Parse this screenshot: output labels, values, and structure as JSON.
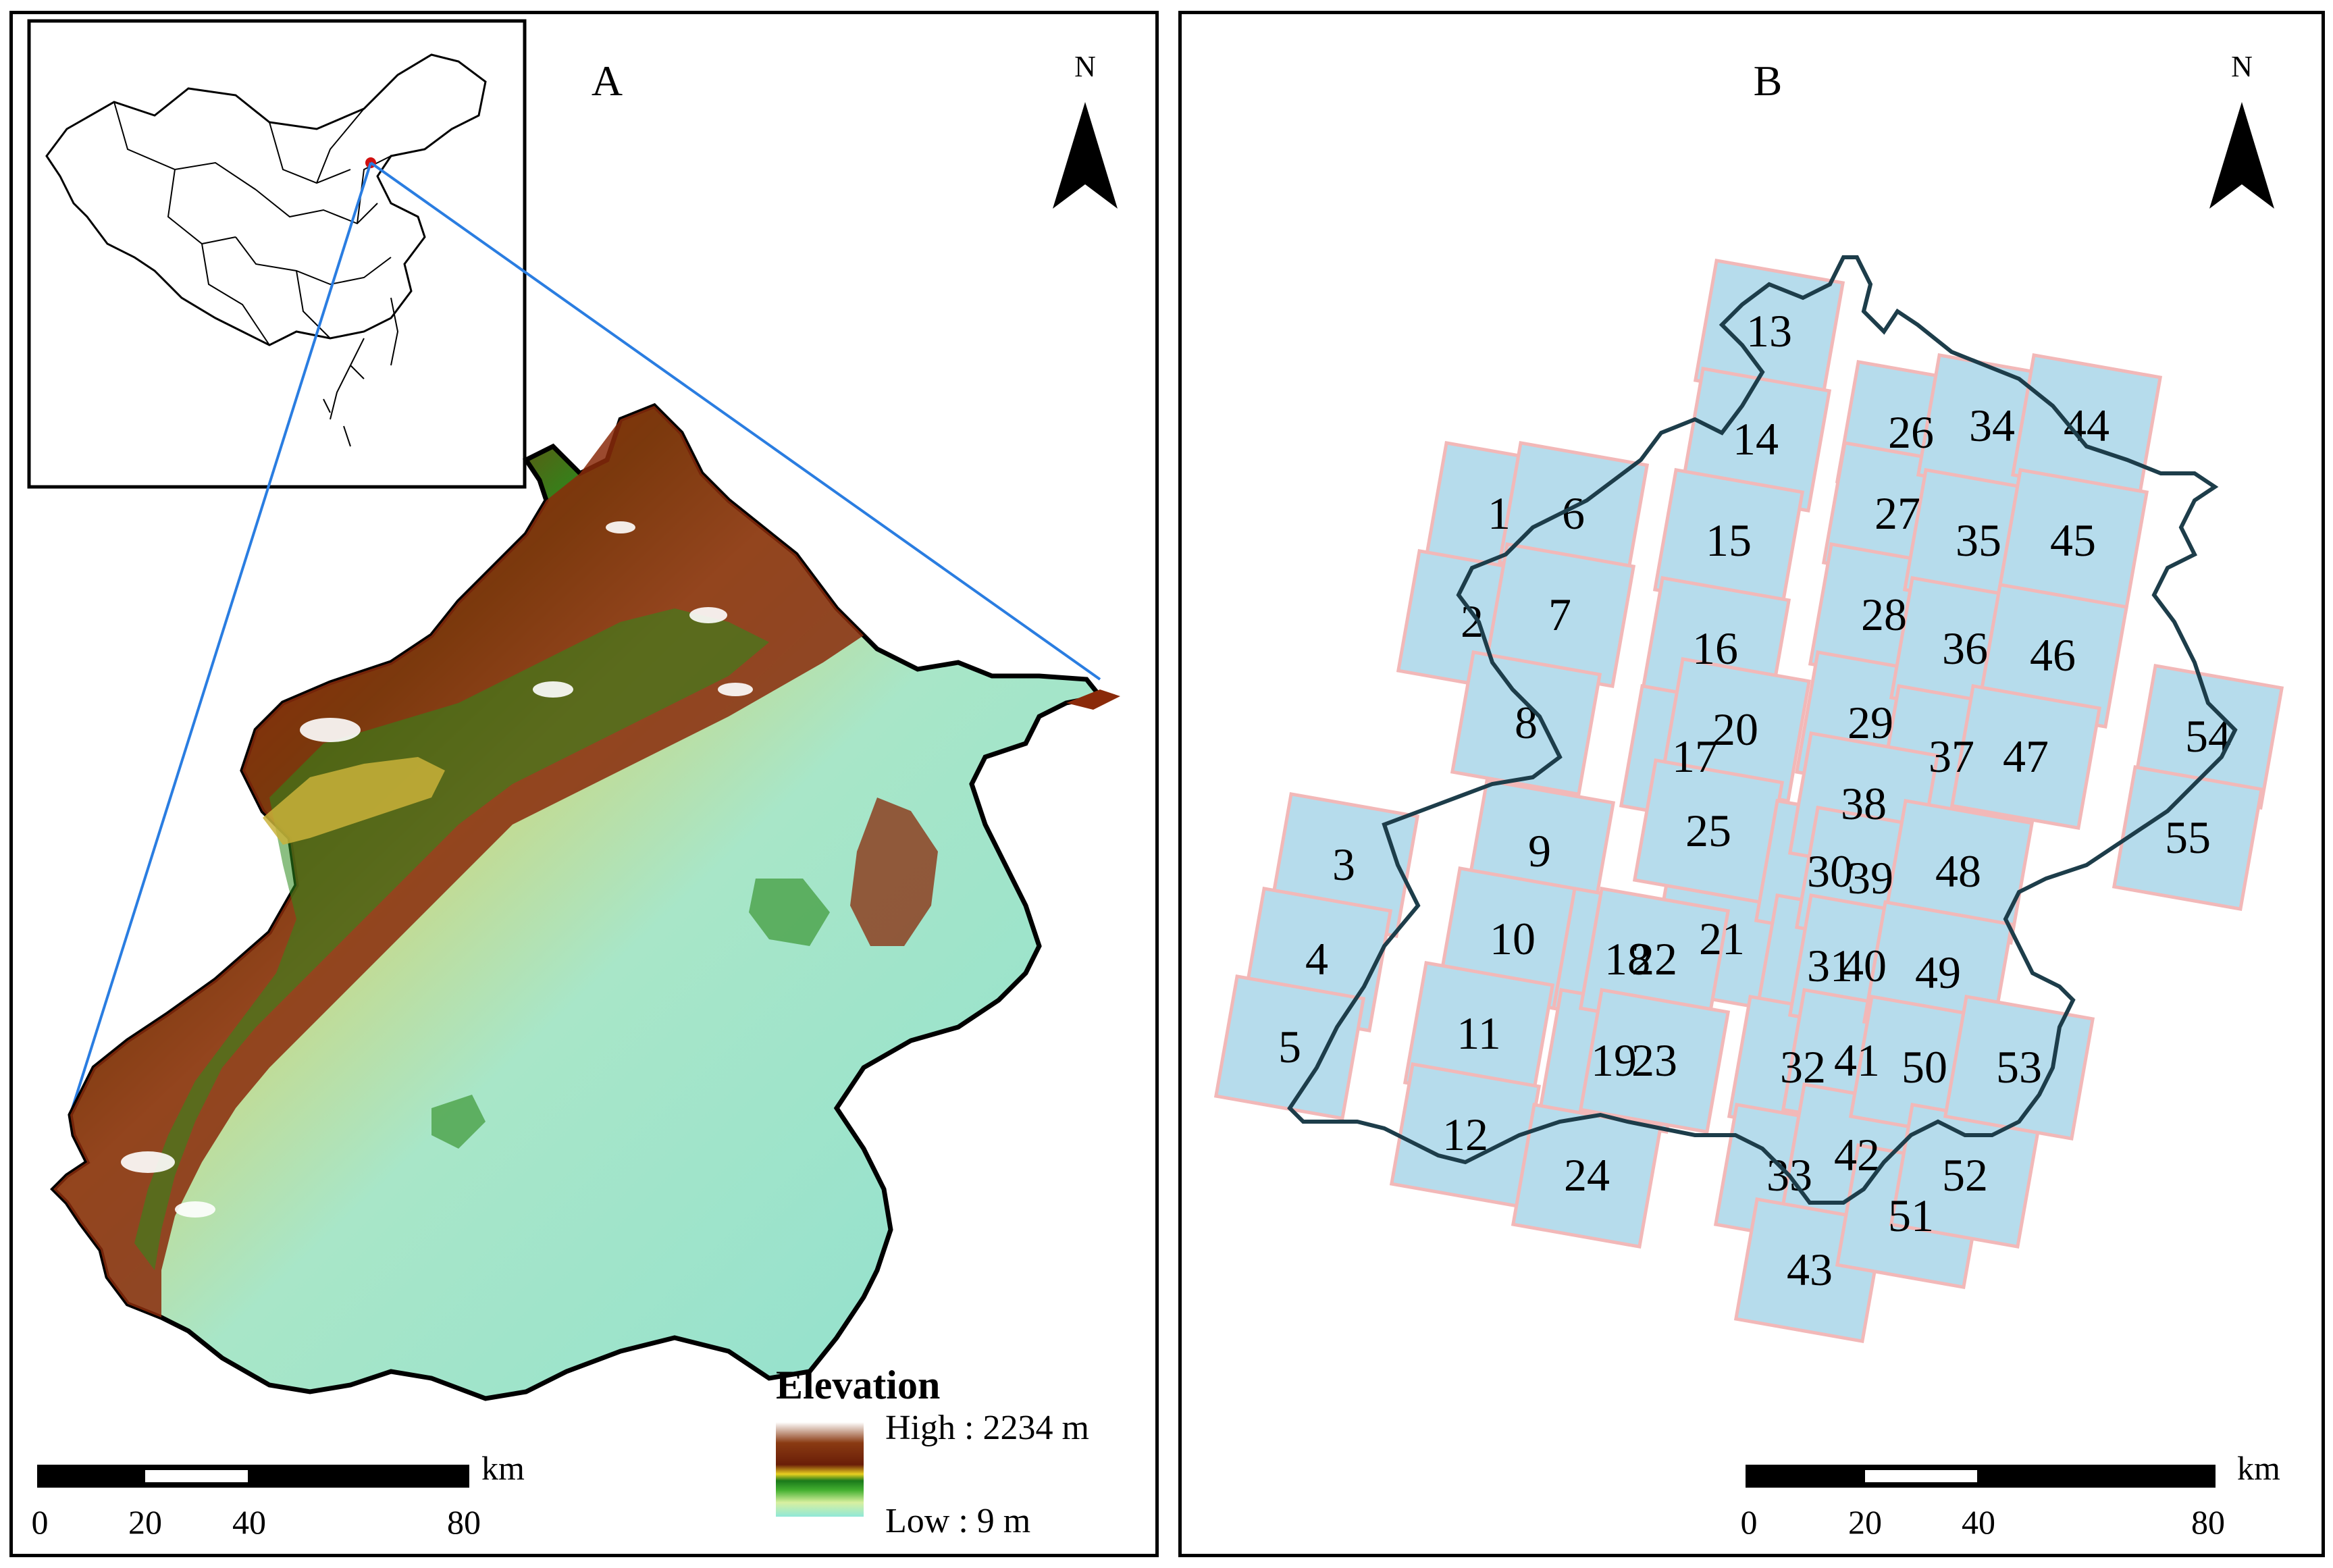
{
  "panel_a": {
    "label": "A",
    "north": "N",
    "legend": {
      "title": "Elevation",
      "high": "High : 2234 m",
      "low": "Low : 9 m"
    },
    "scale": {
      "unit": "km",
      "ticks": [
        "0",
        "20",
        "40",
        "80"
      ]
    }
  },
  "panel_b": {
    "label": "B",
    "north": "N",
    "scale": {
      "unit": "km",
      "ticks": [
        "0",
        "20",
        "40",
        "80"
      ]
    },
    "tiles": [
      "1",
      "2",
      "3",
      "4",
      "5",
      "6",
      "7",
      "8",
      "9",
      "10",
      "11",
      "12",
      "13",
      "14",
      "15",
      "16",
      "17",
      "18",
      "19",
      "20",
      "21",
      "22",
      "23",
      "24",
      "25",
      "26",
      "27",
      "28",
      "29",
      "30",
      "31",
      "32",
      "33",
      "34",
      "35",
      "36",
      "37",
      "38",
      "39",
      "40",
      "41",
      "42",
      "43",
      "44",
      "45",
      "46",
      "47",
      "48",
      "49",
      "50",
      "51",
      "52",
      "53",
      "54",
      "55"
    ]
  },
  "colors": {
    "tile_fill": "#b6dcec",
    "tile_stroke": "#f2b8b8",
    "boundary": "#1d3d4a",
    "link_line": "#2a7de1",
    "marker": "#d01010"
  }
}
